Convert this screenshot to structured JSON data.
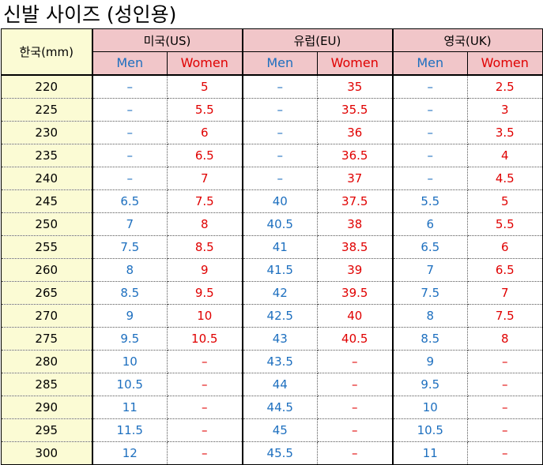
{
  "title": "신발 사이즈 (성인용)",
  "header": {
    "korea_label": "한국(mm)",
    "regions": [
      {
        "label": "미국(US)",
        "men": "Men",
        "women": "Women"
      },
      {
        "label": "유럽(EU)",
        "men": "Men",
        "women": "Women"
      },
      {
        "label": "영국(UK)",
        "men": "Men",
        "women": "Women"
      }
    ]
  },
  "colors": {
    "men": "#1d6fbf",
    "women": "#e00000",
    "header_bg": "#f1c6c9",
    "korea_bg": "#fbfbd4"
  },
  "rows": [
    {
      "kor": "220",
      "us_men": "–",
      "us_women": "5",
      "eu_men": "–",
      "eu_women": "35",
      "uk_men": "–",
      "uk_women": "2.5"
    },
    {
      "kor": "225",
      "us_men": "–",
      "us_women": "5.5",
      "eu_men": "–",
      "eu_women": "35.5",
      "uk_men": "–",
      "uk_women": "3"
    },
    {
      "kor": "230",
      "us_men": "–",
      "us_women": "6",
      "eu_men": "–",
      "eu_women": "36",
      "uk_men": "–",
      "uk_women": "3.5"
    },
    {
      "kor": "235",
      "us_men": "–",
      "us_women": "6.5",
      "eu_men": "–",
      "eu_women": "36.5",
      "uk_men": "–",
      "uk_women": "4"
    },
    {
      "kor": "240",
      "us_men": "–",
      "us_women": "7",
      "eu_men": "–",
      "eu_women": "37",
      "uk_men": "–",
      "uk_women": "4.5"
    },
    {
      "kor": "245",
      "us_men": "6.5",
      "us_women": "7.5",
      "eu_men": "40",
      "eu_women": "37.5",
      "uk_men": "5.5",
      "uk_women": "5"
    },
    {
      "kor": "250",
      "us_men": "7",
      "us_women": "8",
      "eu_men": "40.5",
      "eu_women": "38",
      "uk_men": "6",
      "uk_women": "5.5"
    },
    {
      "kor": "255",
      "us_men": "7.5",
      "us_women": "8.5",
      "eu_men": "41",
      "eu_women": "38.5",
      "uk_men": "6.5",
      "uk_women": "6"
    },
    {
      "kor": "260",
      "us_men": "8",
      "us_women": "9",
      "eu_men": "41.5",
      "eu_women": "39",
      "uk_men": "7",
      "uk_women": "6.5"
    },
    {
      "kor": "265",
      "us_men": "8.5",
      "us_women": "9.5",
      "eu_men": "42",
      "eu_women": "39.5",
      "uk_men": "7.5",
      "uk_women": "7"
    },
    {
      "kor": "270",
      "us_men": "9",
      "us_women": "10",
      "eu_men": "42.5",
      "eu_women": "40",
      "uk_men": "8",
      "uk_women": "7.5"
    },
    {
      "kor": "275",
      "us_men": "9.5",
      "us_women": "10.5",
      "eu_men": "43",
      "eu_women": "40.5",
      "uk_men": "8.5",
      "uk_women": "8"
    },
    {
      "kor": "280",
      "us_men": "10",
      "us_women": "–",
      "eu_men": "43.5",
      "eu_women": "–",
      "uk_men": "9",
      "uk_women": "–"
    },
    {
      "kor": "285",
      "us_men": "10.5",
      "us_women": "–",
      "eu_men": "44",
      "eu_women": "–",
      "uk_men": "9.5",
      "uk_women": "–"
    },
    {
      "kor": "290",
      "us_men": "11",
      "us_women": "–",
      "eu_men": "44.5",
      "eu_women": "–",
      "uk_men": "10",
      "uk_women": "–"
    },
    {
      "kor": "295",
      "us_men": "11.5",
      "us_women": "–",
      "eu_men": "45",
      "eu_women": "–",
      "uk_men": "10.5",
      "uk_women": "–"
    },
    {
      "kor": "300",
      "us_men": "12",
      "us_women": "–",
      "eu_men": "45.5",
      "eu_women": "–",
      "uk_men": "11",
      "uk_women": "–"
    }
  ]
}
